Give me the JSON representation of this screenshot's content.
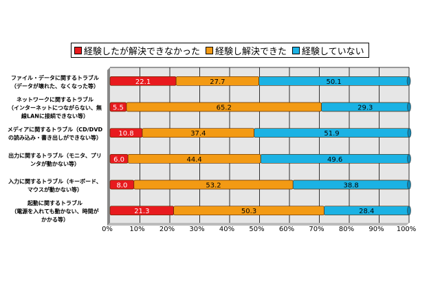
{
  "chart_data": {
    "type": "bar",
    "orientation": "horizontal",
    "stacked": "percent",
    "categories": [
      [
        "ファイル・データに関するトラブル",
        "（データが壊れた、なくなった等）"
      ],
      [
        "ネットワークに関するトラブル",
        "（インターネットにつながらない、無",
        "線LANに接続できない等）"
      ],
      [
        "メディアに関するトラブル（CD/DVD",
        "の読み込み・書き出しができない等）"
      ],
      [
        "出力に関するトラブル（モニタ、プリ",
        "ンタが動かない等）"
      ],
      [
        "入力に関するトラブル（キーボード、",
        "マウスが動かない等）"
      ],
      [
        "起動に関するトラブル",
        "（電源を入れても動かない、時間が",
        "かかる等）"
      ]
    ],
    "series": [
      {
        "name": "経験したが解決できなかった",
        "color": "#e81a1e",
        "values": [
          22.1,
          5.5,
          10.8,
          6.0,
          8.0,
          21.3
        ]
      },
      {
        "name": "経験し解決できた",
        "color": "#f39a14",
        "values": [
          27.7,
          65.2,
          37.4,
          44.4,
          53.2,
          50.3
        ]
      },
      {
        "name": "経験していない",
        "color": "#1bb2e4",
        "values": [
          50.1,
          29.3,
          51.9,
          49.6,
          38.8,
          28.4
        ]
      }
    ],
    "xlim": [
      0,
      100
    ],
    "xticks": [
      "0%",
      "10%",
      "20%",
      "30%",
      "40%",
      "50%",
      "60%",
      "70%",
      "80%",
      "90%",
      "100%"
    ],
    "grid": true,
    "legend": "top"
  }
}
